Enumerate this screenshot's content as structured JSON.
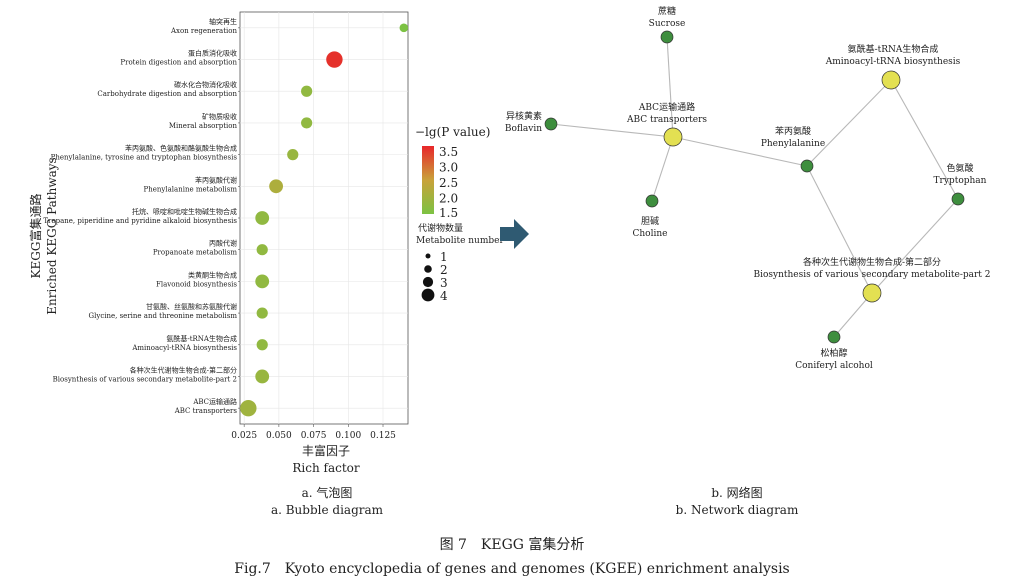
{
  "bubble": {
    "chart_data": {
      "type": "scatter",
      "ylabel_cn": "KEGG富集通路",
      "ylabel_en": "Enriched KEGG Pathways",
      "xlabel_cn": "丰富因子",
      "xlabel_en": "Rich factor",
      "xlim": [
        0.022,
        0.143
      ],
      "x_ticks": [
        "0.025",
        "0.050",
        "0.075",
        "0.100",
        "0.125"
      ],
      "x_tick_values": [
        0.025,
        0.05,
        0.075,
        0.1,
        0.125
      ],
      "color_scale": {
        "min": 1.5,
        "max": 3.7,
        "low_color": "#7cc243",
        "mid_color": "#c9a23a",
        "high_color": "#e8262a"
      },
      "points": [
        {
          "cn": "轴突再生",
          "en": "Axon regeneration",
          "x": 0.14,
          "neglogp": 1.5,
          "count": 1
        },
        {
          "cn": "蛋白质消化吸收",
          "en": "Protein digestion and absorption",
          "x": 0.09,
          "neglogp": 3.6,
          "count": 4
        },
        {
          "cn": "碳水化合物消化吸收",
          "en": "Carbohydrate digestion and absorption",
          "x": 0.07,
          "neglogp": 1.8,
          "count": 2
        },
        {
          "cn": "矿物质吸收",
          "en": "Mineral absorption",
          "x": 0.07,
          "neglogp": 1.8,
          "count": 2
        },
        {
          "cn": "苯丙氨酸、色氨酸和酪氨酸生物合成",
          "en": "Phenylalanine, tyrosine and tryptophan biosynthesis",
          "x": 0.06,
          "neglogp": 1.9,
          "count": 2
        },
        {
          "cn": "苯丙氨酸代谢",
          "en": "Phenylalanine metabolism",
          "x": 0.048,
          "neglogp": 2.2,
          "count": 3
        },
        {
          "cn": "托烷、哌啶和吡啶生物碱生物合成",
          "en": "Tropane, piperidine and pyridine alkaloid biosynthesis",
          "x": 0.038,
          "neglogp": 1.8,
          "count": 3
        },
        {
          "cn": "丙酸代谢",
          "en": "Propanoate metabolism",
          "x": 0.038,
          "neglogp": 1.8,
          "count": 2
        },
        {
          "cn": "类黄酮生物合成",
          "en": "Flavonoid biosynthesis",
          "x": 0.038,
          "neglogp": 1.8,
          "count": 3
        },
        {
          "cn": "甘氨酸、丝氨酸和苏氨酸代谢",
          "en": "Glycine, serine and threonine metabolism",
          "x": 0.038,
          "neglogp": 1.8,
          "count": 2
        },
        {
          "cn": "氨酰基-tRNA生物合成",
          "en": "Aminoacyl-tRNA biosynthesis",
          "x": 0.038,
          "neglogp": 1.8,
          "count": 2
        },
        {
          "cn": "各种次生代谢物生物合成-第二部分",
          "en": "Biosynthesis of various secondary metabolite-part 2",
          "x": 0.038,
          "neglogp": 1.9,
          "count": 3
        },
        {
          "cn": "ABC运输通路",
          "en": "ABC transporters",
          "x": 0.028,
          "neglogp": 2.0,
          "count": 4
        }
      ]
    },
    "colorbar": {
      "title": "−lg(P value)",
      "ticks": [
        "3.5",
        "3.0",
        "2.5",
        "2.0",
        "1.5"
      ],
      "tick_values": [
        3.5,
        3.0,
        2.5,
        2.0,
        1.5
      ]
    },
    "size_legend": {
      "title_cn": "代谢物数量",
      "title_en": "Metabolite number",
      "items": [
        "1",
        "2",
        "3",
        "4"
      ]
    },
    "caption_cn": "a. 气泡图",
    "caption_en": "a. Bubble diagram"
  },
  "network": {
    "nodes": [
      {
        "id": "sucrose",
        "cn": "蔗糖",
        "en": "Sucrose",
        "kind": "metabolite"
      },
      {
        "id": "aminoacyl",
        "cn": "氨酰基-tRNA生物合成",
        "en": "Aminoacyl-tRNA biosynthesis",
        "kind": "pathway"
      },
      {
        "id": "boflavin",
        "cn": "异核黄素",
        "en": "Boflavin",
        "kind": "metabolite"
      },
      {
        "id": "abc",
        "cn": "ABC运输通路",
        "en": "ABC transporters",
        "kind": "pathway"
      },
      {
        "id": "phenylalanine",
        "cn": "苯丙氨酸",
        "en": "Phenylalanine",
        "kind": "metabolite"
      },
      {
        "id": "tryptophan",
        "cn": "色氨酸",
        "en": "Tryptophan",
        "kind": "metabolite"
      },
      {
        "id": "choline",
        "cn": "胆碱",
        "en": "Choline",
        "kind": "metabolite"
      },
      {
        "id": "secondary",
        "cn": "各种次生代谢物生物合成-第二部分",
        "en": "Biosynthesis of various secondary metabolite-part 2",
        "kind": "pathway"
      },
      {
        "id": "coniferyl",
        "cn": "松柏醇",
        "en": "Coniferyl alcohol",
        "kind": "metabolite"
      }
    ],
    "edges": [
      [
        "sucrose",
        "abc"
      ],
      [
        "boflavin",
        "abc"
      ],
      [
        "choline",
        "abc"
      ],
      [
        "abc",
        "phenylalanine"
      ],
      [
        "aminoacyl",
        "phenylalanine"
      ],
      [
        "aminoacyl",
        "tryptophan"
      ],
      [
        "phenylalanine",
        "secondary"
      ],
      [
        "tryptophan",
        "secondary"
      ],
      [
        "secondary",
        "coniferyl"
      ]
    ],
    "colors": {
      "pathway": "#e3e052",
      "metabolite": "#3e8e3e",
      "edge": "#b8b8b8"
    },
    "caption_cn": "b. 网络图",
    "caption_en": "b. Network diagram"
  },
  "figure": {
    "title_cn": "图 7　KEGG 富集分析",
    "title_en": "Fig.7　Kyoto encyclopedia of genes and genomes (KGEE) enrichment analysis"
  }
}
